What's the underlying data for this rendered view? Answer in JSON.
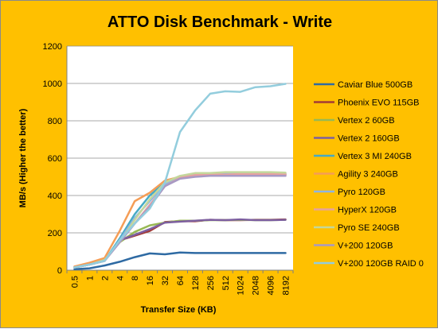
{
  "chart_data": {
    "type": "line",
    "title": "ATTO Disk Benchmark - Write",
    "xlabel": "Transfer Size (KB)",
    "ylabel": "MB/s (Higher the better)",
    "categories": [
      "0.5",
      "1",
      "2",
      "4",
      "8",
      "16",
      "32",
      "64",
      "128",
      "256",
      "512",
      "1024",
      "2048",
      "4096",
      "8192"
    ],
    "ylim": [
      0,
      1200
    ],
    "yticks": [
      "0",
      "200",
      "400",
      "600",
      "800",
      "1000",
      "1200"
    ],
    "grid": true,
    "legend_position": "right",
    "series": [
      {
        "name": "Caviar Blue 500GB",
        "color": "#2e6aa3",
        "values": [
          5,
          10,
          25,
          45,
          70,
          90,
          85,
          95,
          92,
          92,
          92,
          92,
          92,
          92,
          92
        ]
      },
      {
        "name": "Phoenix EVO 115GB",
        "color": "#a33a36",
        "values": [
          15,
          30,
          50,
          160,
          185,
          210,
          258,
          262,
          262,
          270,
          268,
          268,
          270,
          270,
          272
        ]
      },
      {
        "name": "Vertex 2 60GB",
        "color": "#98b954",
        "values": [
          15,
          30,
          55,
          150,
          205,
          240,
          255,
          265,
          265,
          268,
          268,
          270,
          268,
          268,
          270
        ]
      },
      {
        "name": "Vertex 2 160GB",
        "color": "#7d5fa0",
        "values": [
          15,
          30,
          50,
          160,
          190,
          220,
          255,
          260,
          265,
          270,
          268,
          272,
          268,
          268,
          270
        ]
      },
      {
        "name": "Vertex 3 MI 240GB",
        "color": "#46aac5",
        "values": [
          15,
          30,
          50,
          170,
          300,
          400,
          470,
          500,
          510,
          512,
          515,
          515,
          512,
          512,
          512
        ]
      },
      {
        "name": "Agility 3 240GB",
        "color": "#f59d56",
        "values": [
          20,
          40,
          65,
          210,
          370,
          415,
          480,
          500,
          505,
          510,
          510,
          510,
          510,
          512,
          512
        ]
      },
      {
        "name": "Pyro 120GB",
        "color": "#8eb4e3",
        "values": [
          15,
          30,
          50,
          160,
          280,
          370,
          460,
          500,
          515,
          520,
          515,
          518,
          518,
          518,
          518
        ]
      },
      {
        "name": "HyperX 120GB",
        "color": "#e6a2a0",
        "values": [
          15,
          30,
          50,
          150,
          250,
          350,
          450,
          495,
          510,
          515,
          512,
          515,
          515,
          515,
          515
        ]
      },
      {
        "name": "Pyro SE 240GB",
        "color": "#c4d79b",
        "values": [
          15,
          30,
          55,
          150,
          270,
          380,
          470,
          505,
          520,
          520,
          525,
          525,
          525,
          525,
          522
        ]
      },
      {
        "name": "V+200 120GB",
        "color": "#a899c4",
        "values": [
          15,
          30,
          50,
          150,
          250,
          340,
          450,
          490,
          500,
          505,
          505,
          505,
          505,
          505,
          505
        ]
      },
      {
        "name": "V+200 120GB RAID 0",
        "color": "#93cddd",
        "values": [
          15,
          30,
          50,
          160,
          250,
          330,
          470,
          740,
          855,
          945,
          958,
          955,
          980,
          985,
          998
        ]
      }
    ]
  }
}
